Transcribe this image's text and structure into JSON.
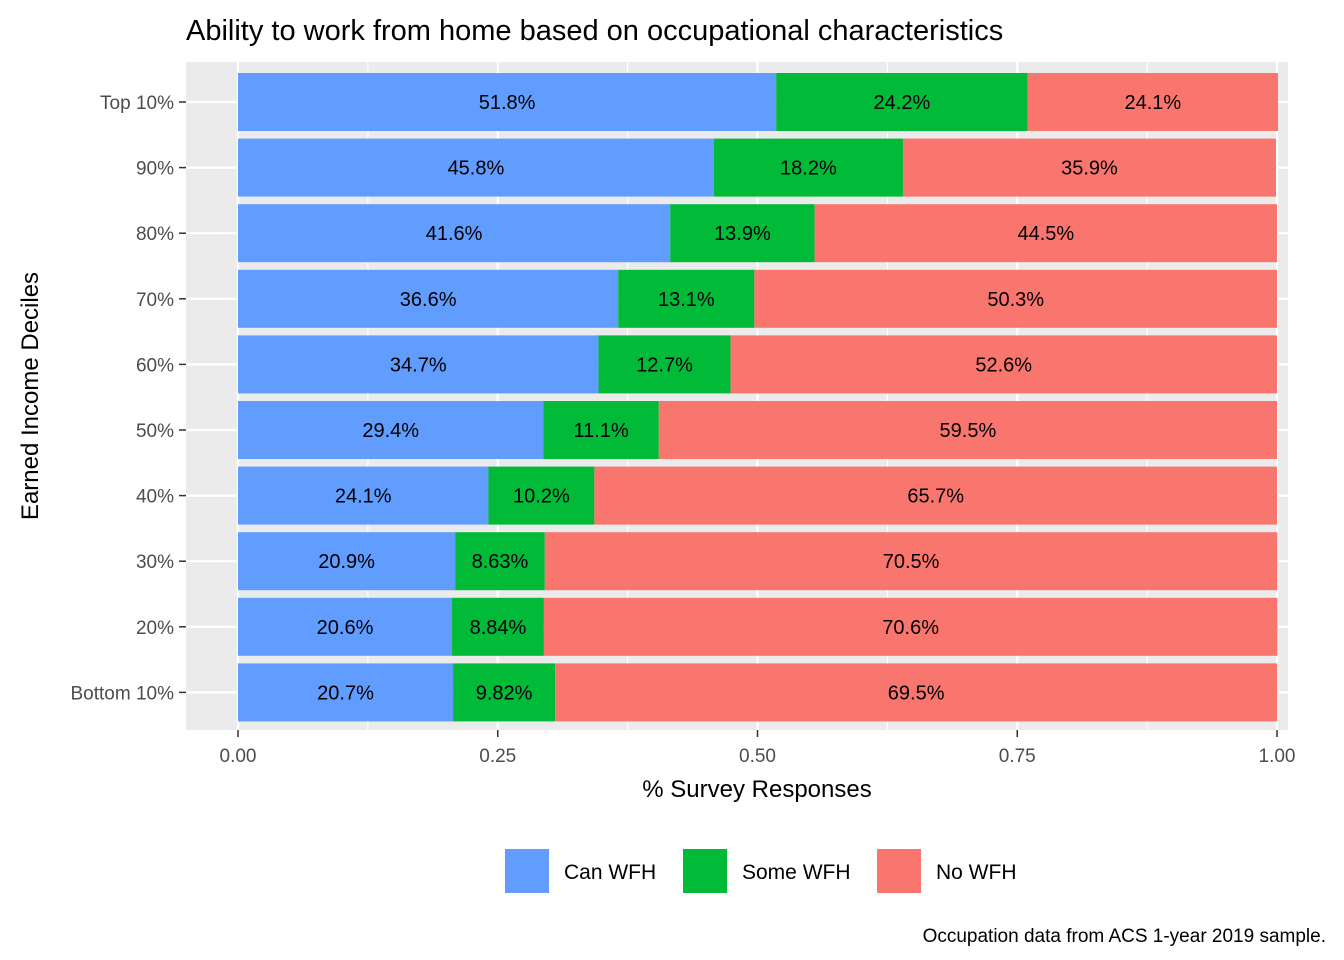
{
  "chart_data": {
    "type": "bar",
    "orientation": "horizontal",
    "stacked": true,
    "title": "Ability to work from home based on occupational characteristics",
    "xlabel": "% Survey Responses",
    "ylabel": "Earned Income Deciles",
    "caption": "Occupation data from ACS 1-year 2019 sample.",
    "xlim": [
      0,
      1
    ],
    "x_ticks": [
      "0.00",
      "0.25",
      "0.50",
      "0.75",
      "1.00"
    ],
    "categories": [
      "Top 10%",
      "90%",
      "80%",
      "70%",
      "60%",
      "50%",
      "40%",
      "30%",
      "20%",
      "Bottom 10%"
    ],
    "series": [
      {
        "name": "Can WFH",
        "color": "#619cff",
        "values": [
          0.518,
          0.458,
          0.416,
          0.366,
          0.347,
          0.294,
          0.241,
          0.209,
          0.206,
          0.207
        ],
        "labels": [
          "51.8%",
          "45.8%",
          "41.6%",
          "36.6%",
          "34.7%",
          "29.4%",
          "24.1%",
          "20.9%",
          "20.6%",
          "20.7%"
        ]
      },
      {
        "name": "Some WFH",
        "color": "#00ba38",
        "values": [
          0.242,
          0.182,
          0.139,
          0.131,
          0.127,
          0.111,
          0.102,
          0.0863,
          0.0884,
          0.0982
        ],
        "labels": [
          "24.2%",
          "18.2%",
          "13.9%",
          "13.1%",
          "12.7%",
          "11.1%",
          "10.2%",
          "8.63%",
          "8.84%",
          "9.82%"
        ]
      },
      {
        "name": "No WFH",
        "color": "#f8766d",
        "values": [
          0.241,
          0.359,
          0.445,
          0.503,
          0.526,
          0.595,
          0.657,
          0.705,
          0.706,
          0.695
        ],
        "labels": [
          "24.1%",
          "35.9%",
          "44.5%",
          "50.3%",
          "52.6%",
          "59.5%",
          "65.7%",
          "70.5%",
          "70.6%",
          "69.5%"
        ]
      }
    ],
    "legend_position": "bottom",
    "grid": true,
    "panel_background": "#ebebeb"
  }
}
